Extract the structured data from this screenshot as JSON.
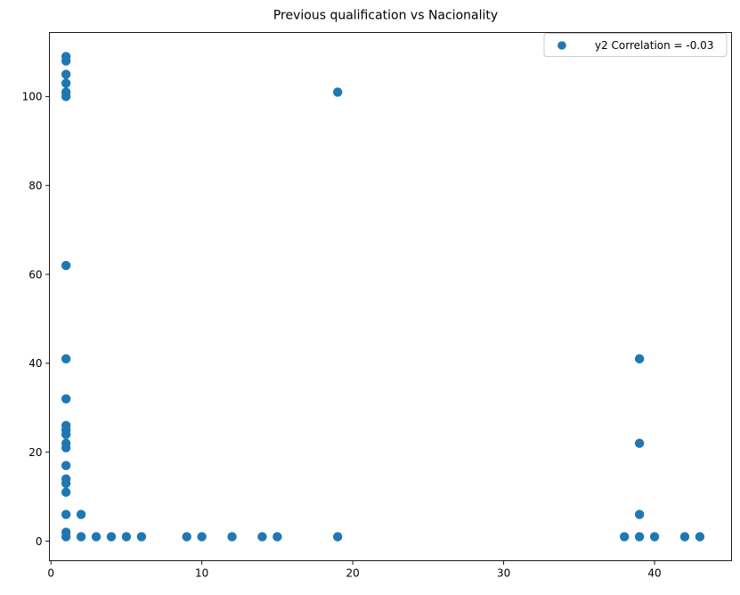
{
  "chart_data": {
    "type": "scatter",
    "title": "Previous qualification vs Nacionality",
    "xlabel": "",
    "ylabel": "",
    "xlim": [
      -0.1,
      45.1
    ],
    "ylim": [
      -4.4,
      114.4
    ],
    "x_ticks": [
      0,
      10,
      20,
      30,
      40
    ],
    "y_ticks": [
      0,
      20,
      40,
      60,
      80,
      100
    ],
    "grid": false,
    "legend_position": "top-right",
    "series": [
      {
        "name": "y2 Correlation = -0.03",
        "color": "#1f77b4",
        "points": [
          [
            1,
            1
          ],
          [
            1,
            2
          ],
          [
            1,
            6
          ],
          [
            1,
            11
          ],
          [
            1,
            13
          ],
          [
            1,
            14
          ],
          [
            1,
            17
          ],
          [
            1,
            21
          ],
          [
            1,
            22
          ],
          [
            1,
            24
          ],
          [
            1,
            25
          ],
          [
            1,
            26
          ],
          [
            1,
            32
          ],
          [
            1,
            41
          ],
          [
            1,
            62
          ],
          [
            1,
            100
          ],
          [
            1,
            101
          ],
          [
            1,
            103
          ],
          [
            1,
            105
          ],
          [
            1,
            108
          ],
          [
            1,
            109
          ],
          [
            2,
            1
          ],
          [
            2,
            6
          ],
          [
            3,
            1
          ],
          [
            4,
            1
          ],
          [
            5,
            1
          ],
          [
            6,
            1
          ],
          [
            9,
            1
          ],
          [
            10,
            1
          ],
          [
            12,
            1
          ],
          [
            14,
            1
          ],
          [
            15,
            1
          ],
          [
            19,
            1
          ],
          [
            19,
            101
          ],
          [
            38,
            1
          ],
          [
            39,
            1
          ],
          [
            39,
            6
          ],
          [
            39,
            22
          ],
          [
            39,
            41
          ],
          [
            40,
            1
          ],
          [
            42,
            1
          ],
          [
            43,
            1
          ]
        ]
      }
    ]
  }
}
